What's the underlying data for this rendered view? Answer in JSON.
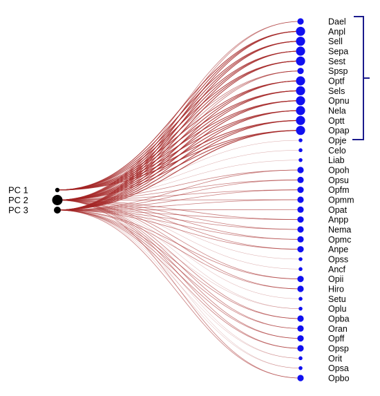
{
  "pcs": [
    {
      "label": "PC 1",
      "dot": "small"
    },
    {
      "label": "PC 2",
      "dot": "large"
    },
    {
      "label": "PC 3",
      "dot": "medium"
    }
  ],
  "taxa": [
    {
      "label": "Dael",
      "dot": "m",
      "pc": [
        2,
        3
      ]
    },
    {
      "label": "Anpl",
      "dot": "l",
      "pc": [
        1,
        2,
        3
      ]
    },
    {
      "label": "Sell",
      "dot": "l",
      "pc": [
        1,
        2,
        3
      ]
    },
    {
      "label": "Sepa",
      "dot": "l",
      "pc": [
        1,
        2,
        3
      ]
    },
    {
      "label": "Sest",
      "dot": "l",
      "pc": [
        1,
        2,
        3
      ]
    },
    {
      "label": "Spsp",
      "dot": "m",
      "pc": [
        1,
        2,
        3
      ]
    },
    {
      "label": "Optf",
      "dot": "l",
      "pc": [
        1,
        2,
        3
      ]
    },
    {
      "label": "Sels",
      "dot": "l",
      "pc": [
        1,
        2,
        3
      ]
    },
    {
      "label": "Opnu",
      "dot": "l",
      "pc": [
        1,
        2,
        3
      ]
    },
    {
      "label": "Nela",
      "dot": "l",
      "pc": [
        1,
        2,
        3
      ]
    },
    {
      "label": "Optt",
      "dot": "l",
      "pc": [
        1,
        2,
        3
      ]
    },
    {
      "label": "Opap",
      "dot": "l",
      "pc": [
        1,
        2,
        3
      ]
    },
    {
      "label": "Opje",
      "dot": "s",
      "pc": [
        2
      ]
    },
    {
      "label": "Celo",
      "dot": "s",
      "pc": [
        2
      ]
    },
    {
      "label": "Liab",
      "dot": "s",
      "pc": [
        2
      ]
    },
    {
      "label": "Opoh",
      "dot": "m",
      "pc": [
        2,
        3
      ]
    },
    {
      "label": "Opsu",
      "dot": "m",
      "pc": [
        2,
        3
      ]
    },
    {
      "label": "Opfm",
      "dot": "m",
      "pc": [
        2,
        3
      ]
    },
    {
      "label": "Opmm",
      "dot": "m",
      "pc": [
        2,
        3
      ]
    },
    {
      "label": "Opat",
      "dot": "m",
      "pc": [
        3
      ]
    },
    {
      "label": "Anpp",
      "dot": "m",
      "pc": [
        2,
        3
      ]
    },
    {
      "label": "Nema",
      "dot": "m",
      "pc": [
        2,
        3
      ]
    },
    {
      "label": "Opmc",
      "dot": "m",
      "pc": [
        2,
        3
      ]
    },
    {
      "label": "Anpe",
      "dot": "m",
      "pc": [
        2,
        3
      ]
    },
    {
      "label": "Opss",
      "dot": "s",
      "pc": [
        2
      ]
    },
    {
      "label": "Ancf",
      "dot": "s",
      "pc": [
        2
      ]
    },
    {
      "label": "Opii",
      "dot": "m",
      "pc": [
        2,
        3
      ]
    },
    {
      "label": "Hiro",
      "dot": "m",
      "pc": [
        2,
        3
      ]
    },
    {
      "label": "Setu",
      "dot": "s",
      "pc": [
        2
      ]
    },
    {
      "label": "Oplu",
      "dot": "s",
      "pc": [
        2,
        3
      ]
    },
    {
      "label": "Opba",
      "dot": "m",
      "pc": [
        2,
        3
      ]
    },
    {
      "label": "Oran",
      "dot": "m",
      "pc": [
        2,
        3
      ]
    },
    {
      "label": "Opff",
      "dot": "m",
      "pc": [
        2,
        3
      ]
    },
    {
      "label": "Opsp",
      "dot": "m",
      "pc": [
        2,
        3
      ]
    },
    {
      "label": "Orit",
      "dot": "s",
      "pc": [
        2,
        3
      ]
    },
    {
      "label": "Opsa",
      "dot": "s",
      "pc": [
        2,
        3
      ]
    },
    {
      "label": "Opbo",
      "dot": "m",
      "pc": [
        2,
        3
      ]
    }
  ],
  "bracket": {
    "from": "Dael",
    "to": "Opje"
  },
  "colors": {
    "edge": "#a32424",
    "taxon_dot": "#1010f0",
    "pc_dot": "#000000",
    "bracket": "#1a1a8c",
    "label": "#000000"
  }
}
